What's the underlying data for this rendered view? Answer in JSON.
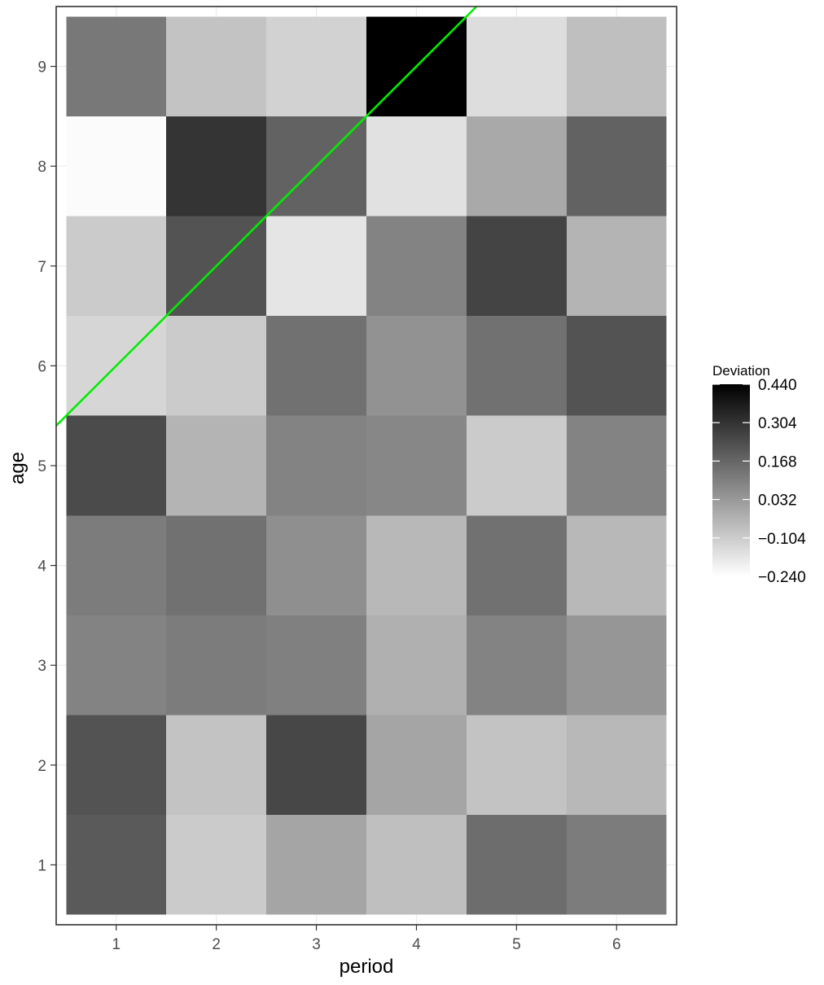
{
  "chart_data": {
    "type": "heatmap",
    "xlabel": "period",
    "ylabel": "age",
    "x_categories": [
      "1",
      "2",
      "3",
      "4",
      "5",
      "6"
    ],
    "y_categories": [
      "1",
      "2",
      "3",
      "4",
      "5",
      "6",
      "7",
      "8",
      "9"
    ],
    "values_by_age": [
      [
        0.2,
        -0.1,
        0.0,
        -0.07,
        0.15,
        0.11
      ],
      [
        0.22,
        -0.08,
        0.25,
        0.0,
        -0.08,
        -0.05
      ],
      [
        0.09,
        0.11,
        0.1,
        -0.03,
        0.09,
        0.04
      ],
      [
        0.11,
        0.14,
        0.06,
        -0.05,
        0.14,
        -0.05
      ],
      [
        0.24,
        -0.04,
        0.09,
        0.08,
        -0.1,
        0.09
      ],
      [
        -0.13,
        -0.1,
        0.14,
        0.05,
        0.14,
        0.22
      ],
      [
        -0.1,
        0.22,
        -0.17,
        0.09,
        0.26,
        -0.04
      ],
      [
        -0.23,
        0.3,
        0.18,
        -0.16,
        -0.01,
        0.18
      ],
      [
        0.12,
        -0.08,
        -0.12,
        0.44,
        -0.15,
        -0.07
      ]
    ],
    "color_low": "#ffffff",
    "color_high": "#000000",
    "overlay_line": {
      "color": "#00ee00",
      "from": [
        0.5,
        5.5
      ],
      "to": [
        4.5,
        9.5
      ]
    },
    "xlim": [
      0.4,
      6.6
    ],
    "ylim": [
      0.4,
      9.6
    ],
    "grid": true,
    "legend": {
      "title": "Deviation",
      "labels": [
        "0.440",
        "0.304",
        "0.168",
        "0.032",
        "−0.104",
        "−0.240"
      ],
      "values": [
        0.44,
        0.304,
        0.168,
        0.032,
        -0.104,
        -0.24
      ],
      "min": -0.24,
      "max": 0.44,
      "placement": "right"
    }
  }
}
